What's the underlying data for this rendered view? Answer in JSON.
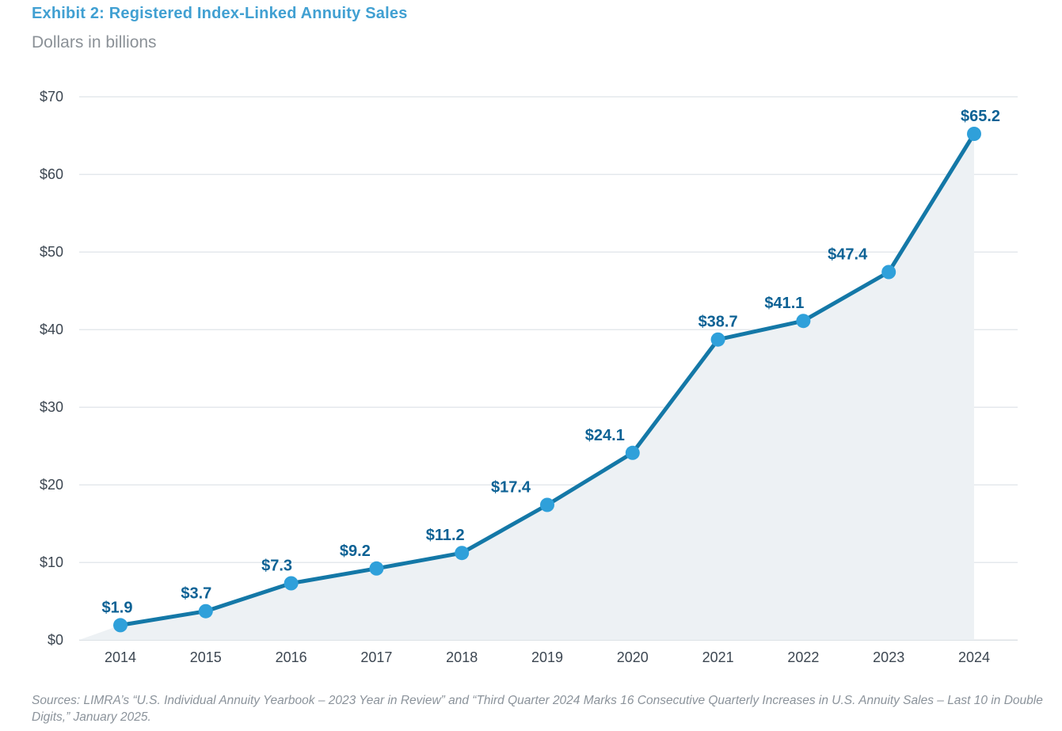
{
  "header": {
    "title": "Exhibit 2: Registered Index-Linked Annuity Sales",
    "subtitle": "Dollars in billions"
  },
  "chart_data": {
    "type": "area",
    "title": "Exhibit 2: Registered Index-Linked Annuity Sales",
    "subtitle": "Dollars in billions",
    "categories": [
      "2014",
      "2015",
      "2016",
      "2017",
      "2018",
      "2019",
      "2020",
      "2021",
      "2022",
      "2023",
      "2024"
    ],
    "values": [
      1.9,
      3.7,
      7.3,
      9.2,
      11.2,
      17.4,
      24.1,
      38.7,
      41.1,
      47.4,
      65.2
    ],
    "data_labels": [
      "$1.9",
      "$3.7",
      "$7.3",
      "$9.2",
      "$11.2",
      "$17.4",
      "$24.1",
      "$38.7",
      "$41.1",
      "$47.4",
      "$65.2"
    ],
    "xlabel": "",
    "ylabel": "Dollars in billions",
    "ylim": [
      0,
      70
    ],
    "y_tick_step": 10,
    "y_ticks": [
      "$0",
      "$10",
      "$20",
      "$30",
      "$40",
      "$50",
      "$60",
      "$70"
    ],
    "grid": true,
    "legend": "none",
    "colors": {
      "line": "#1478A7",
      "marker": "#2FA0DA",
      "area_fill": "#EDF1F4",
      "data_label": "#0D6295",
      "gridline": "#E4E8EC",
      "baseline": "#DDE2E6",
      "axis_text": "#3C4651",
      "title": "#41A0D2",
      "subtitle": "#8B9197",
      "source_text": "#8B939B"
    }
  },
  "footer": {
    "source": "Sources: LIMRA’s “U.S. Individual Annuity Yearbook – 2023 Year in Review” and “Third Quarter 2024 Marks 16 Consecutive Quarterly Increases in U.S. Annuity Sales – Last 10 in Double Digits,” January 2025."
  }
}
